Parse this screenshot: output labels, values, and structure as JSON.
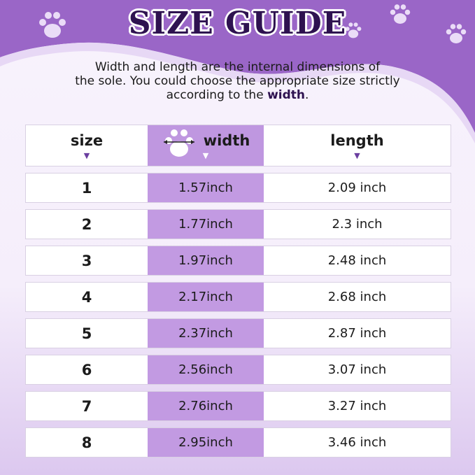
{
  "title": "SIZE GUIDE",
  "intro": {
    "line1": "Width and length are the internal dimensions of",
    "line2": "the sole. You could choose the appropriate size strictly",
    "line3_prefix": "according to the ",
    "line3_bold": "width",
    "line3_suffix": "."
  },
  "table": {
    "headers": [
      "size",
      "width",
      "length"
    ],
    "rows": [
      [
        "1",
        "1.57inch",
        "2.09 inch"
      ],
      [
        "2",
        "1.77inch",
        "2.3 inch"
      ],
      [
        "3",
        "1.97inch",
        "2.48 inch"
      ],
      [
        "4",
        "2.17inch",
        "2.68 inch"
      ],
      [
        "5",
        "2.37inch",
        "2.87 inch"
      ],
      [
        "6",
        "2.56inch",
        "3.07 inch"
      ],
      [
        "7",
        "2.76inch",
        "3.27 inch"
      ],
      [
        "8",
        "2.95inch",
        "3.46 inch"
      ]
    ]
  },
  "colors": {
    "banner": "#9a66c7",
    "width_column": "#c29ae2",
    "title": "#2e1250"
  },
  "icons": [
    "paw-print-icon",
    "triangle-down-icon",
    "width-arrow-icon"
  ]
}
